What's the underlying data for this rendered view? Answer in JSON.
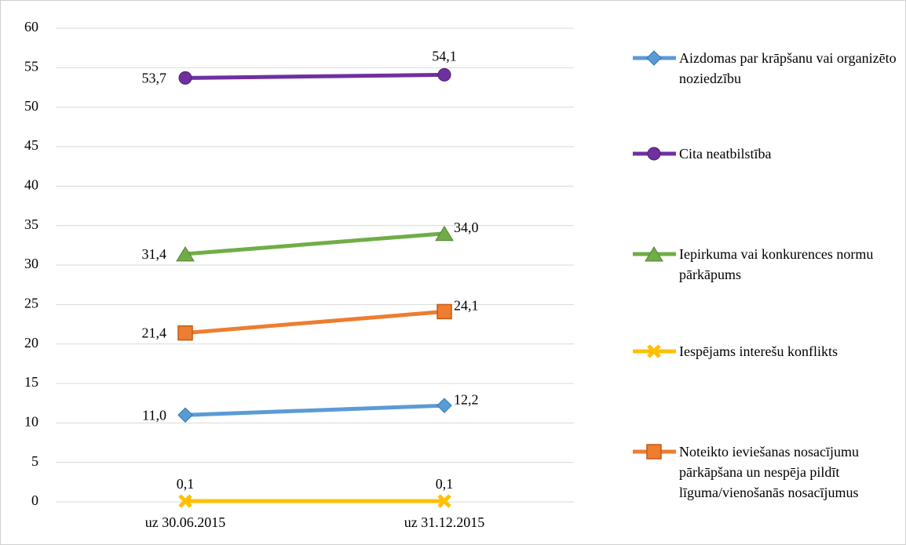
{
  "chart_data": {
    "type": "line",
    "categories": [
      "uz 30.06.2015",
      "uz 31.12.2015"
    ],
    "series": [
      {
        "name": "Aizdomas par krāpšanu vai organizēto noziedzību",
        "color": "#5b9bd5",
        "marker": "diamond",
        "values": [
          11.0,
          12.2
        ],
        "value_labels": [
          "11,0",
          "12,2"
        ]
      },
      {
        "name": "Cita neatbilstība",
        "color": "#7030a0",
        "marker": "circle",
        "values": [
          53.7,
          54.1
        ],
        "value_labels": [
          "53,7",
          "54,1"
        ]
      },
      {
        "name": "Iepirkuma vai konkurences normu pārkāpums",
        "color": "#70ad47",
        "marker": "triangle",
        "values": [
          31.4,
          34.0
        ],
        "value_labels": [
          "31,4",
          "34,0"
        ]
      },
      {
        "name": "Iespējams interešu konflikts",
        "color": "#ffc000",
        "marker": "x",
        "values": [
          0.1,
          0.1
        ],
        "value_labels": [
          "0,1",
          "0,1"
        ]
      },
      {
        "name": "Noteikto ieviešanas nosacījumu pārkāpšana un nespēja pildīt līguma/vienošanās nosacījumus",
        "color": "#ed7d31",
        "marker": "square",
        "values": [
          21.4,
          24.1
        ],
        "value_labels": [
          "21,4",
          "24,1"
        ]
      }
    ],
    "ylim": [
      0,
      60
    ],
    "yticks": [
      0,
      5,
      10,
      15,
      20,
      25,
      30,
      35,
      40,
      45,
      50,
      55,
      60
    ],
    "grid": true,
    "legend": "right"
  }
}
